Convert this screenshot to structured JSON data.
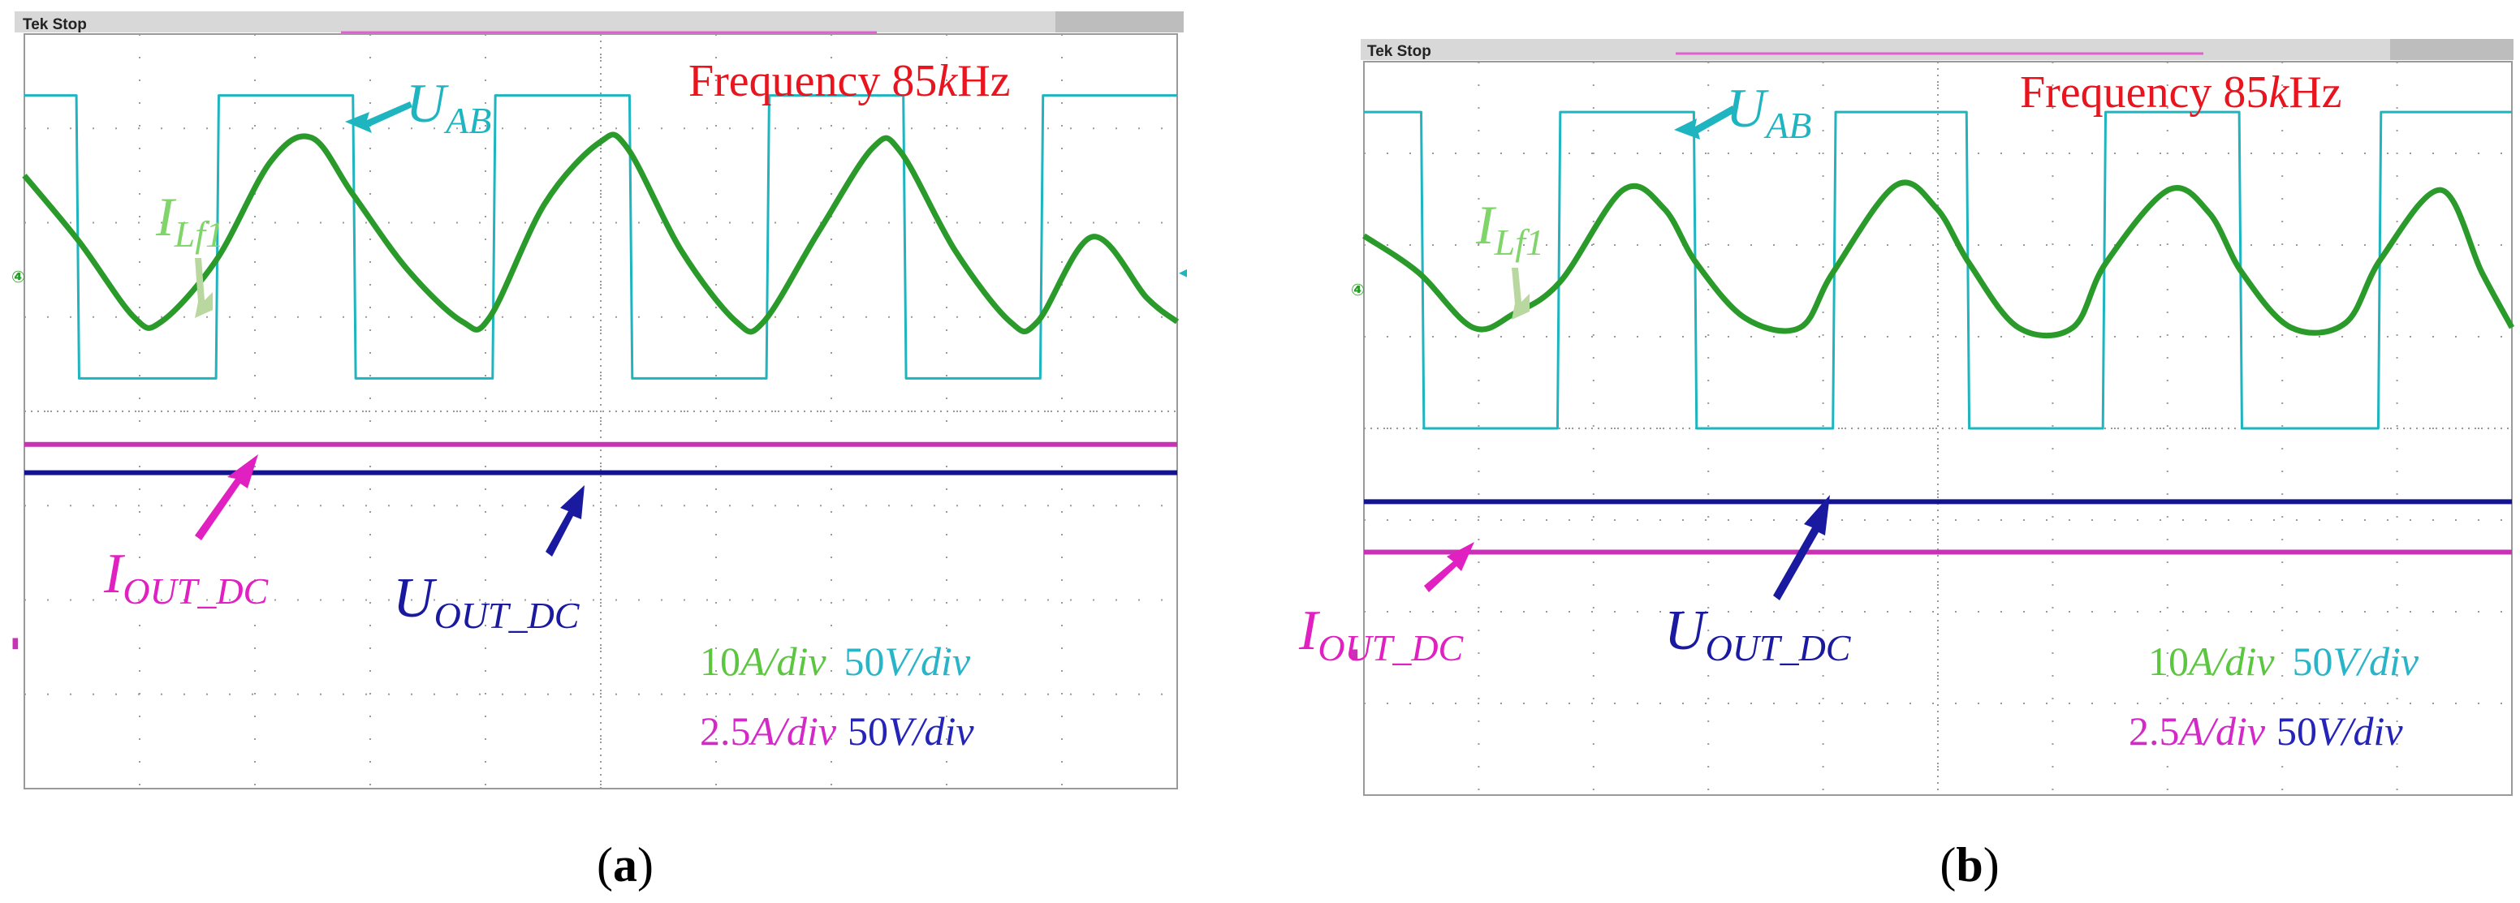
{
  "colors": {
    "uab": "#1fb5c0",
    "ilf1": "#2a9a2a",
    "iout": "#e020c0",
    "uout": "#1a1aa0",
    "iout_trace": "#c832b4",
    "uout_trace": "#14148c",
    "title": "#e8141e",
    "ilf1_label": "#7fd46a",
    "arrow_ilf1": "#b8d8a0",
    "scale_green": "#5cc640",
    "scale_cyan": "#29b4c8",
    "scale_magenta": "#d428c8",
    "scale_blue": "#2424b8"
  },
  "chart_data": [
    {
      "type": "line",
      "panel_label": "a",
      "header": "Tek Stop",
      "title_prefix": "Frequency 85",
      "title_k": "k",
      "title_unit": "Hz",
      "frequency_khz": 85,
      "grid": true,
      "x_divisions": 10,
      "y_divisions": 8,
      "labels": {
        "uab": {
          "base": "U",
          "sub": "AB"
        },
        "ilf1": {
          "base": "I",
          "sub": "Lf1"
        },
        "iout": {
          "base": "I",
          "sub": "OUT_DC"
        },
        "uout": {
          "base": "U",
          "sub": "OUT_DC"
        }
      },
      "scales": {
        "ch_current": {
          "num": "10",
          "unit": "A",
          "per": "/div"
        },
        "ch_voltage": {
          "num": "50",
          "unit": "V",
          "per": "/div"
        },
        "out_current": {
          "num": "2.5",
          "unit": "A",
          "per": "/div"
        },
        "out_voltage": {
          "num": "50",
          "unit": "V",
          "per": "/div"
        }
      },
      "series": [
        {
          "name": "U_AB",
          "color": "#1fb5c0",
          "x": [
            0,
            0.38,
            0.4,
            1.4,
            1.42,
            2.4,
            2.42,
            3.42,
            3.44,
            4.42,
            4.44,
            5.42,
            5.44,
            6.42,
            6.44,
            7.42,
            7.44,
            8.42
          ],
          "y": [
            3.35,
            3.35,
            0.35,
            0.35,
            3.35,
            3.35,
            0.35,
            0.35,
            3.35,
            3.35,
            0.35,
            0.35,
            3.35,
            3.35,
            0.35,
            0.35,
            3.35,
            3.35
          ]
        },
        {
          "name": "I_Lf1",
          "color": "#2a9a2a",
          "x": [
            0,
            0.4,
            0.8,
            1.0,
            1.4,
            1.8,
            2.1,
            2.4,
            2.8,
            3.2,
            3.4,
            3.8,
            4.2,
            4.4,
            4.8,
            5.2,
            5.4,
            5.8,
            6.2,
            6.4,
            6.8,
            7.2,
            7.4,
            7.8,
            8.2,
            8.42
          ],
          "y": [
            2.5,
            1.8,
            1.0,
            0.95,
            1.6,
            2.65,
            2.9,
            2.3,
            1.5,
            0.95,
            1.0,
            2.2,
            2.85,
            2.8,
            1.7,
            0.95,
            0.95,
            1.9,
            2.8,
            2.75,
            1.7,
            0.95,
            0.95,
            1.85,
            1.2,
            0.95
          ]
        },
        {
          "name": "I_OUT_DC",
          "color": "#c832b4",
          "x": [
            0,
            8.42
          ],
          "y": [
            -0.35,
            -0.35
          ]
        },
        {
          "name": "U_OUT_DC",
          "color": "#14148c",
          "x": [
            0,
            8.42
          ],
          "y": [
            -0.65,
            -0.65
          ]
        }
      ]
    },
    {
      "type": "line",
      "panel_label": "b",
      "header": "Tek Stop",
      "title_prefix": "Frequency 85",
      "title_k": "k",
      "title_unit": "Hz",
      "frequency_khz": 85,
      "grid": true,
      "x_divisions": 10,
      "y_divisions": 8,
      "labels": {
        "uab": {
          "base": "U",
          "sub": "AB"
        },
        "ilf1": {
          "base": "I",
          "sub": "Lf1"
        },
        "iout": {
          "base": "I",
          "sub": "OUT_DC"
        },
        "uout": {
          "base": "U",
          "sub": "OUT_DC"
        }
      },
      "scales": {
        "ch_current": {
          "num": "10",
          "unit": "A",
          "per": "/div"
        },
        "ch_voltage": {
          "num": "50",
          "unit": "V",
          "per": "/div"
        },
        "out_current": {
          "num": "2.5",
          "unit": "A",
          "per": "/div"
        },
        "out_voltage": {
          "num": "50",
          "unit": "V",
          "per": "/div"
        }
      },
      "series": [
        {
          "name": "U_AB",
          "color": "#1fb5c0",
          "x": [
            0,
            0.42,
            0.44,
            1.42,
            1.44,
            2.42,
            2.44,
            3.44,
            3.46,
            4.42,
            4.44,
            5.42,
            5.44,
            6.42,
            6.44,
            7.44,
            7.46,
            8.42
          ],
          "y": [
            3.45,
            3.45,
            0.0,
            0.0,
            3.45,
            3.45,
            0.0,
            0.0,
            3.45,
            3.45,
            0.0,
            0.0,
            3.45,
            3.45,
            0.0,
            0.0,
            3.45,
            3.45
          ]
        },
        {
          "name": "I_Lf1",
          "color": "#2a9a2a",
          "x": [
            0,
            0.4,
            0.8,
            1.1,
            1.44,
            1.9,
            2.2,
            2.44,
            2.8,
            3.2,
            3.44,
            3.9,
            4.2,
            4.44,
            4.8,
            5.2,
            5.44,
            5.9,
            6.2,
            6.44,
            6.8,
            7.2,
            7.46,
            7.9,
            8.2,
            8.42
          ],
          "y": [
            2.1,
            1.7,
            1.1,
            1.25,
            1.6,
            2.6,
            2.4,
            1.8,
            1.2,
            1.1,
            1.7,
            2.65,
            2.4,
            1.8,
            1.1,
            1.1,
            1.8,
            2.6,
            2.35,
            1.7,
            1.1,
            1.15,
            1.85,
            2.6,
            1.7,
            1.1
          ]
        },
        {
          "name": "U_OUT_DC",
          "color": "#14148c",
          "x": [
            0,
            8.42
          ],
          "y": [
            -0.8,
            -0.8
          ]
        },
        {
          "name": "I_OUT_DC",
          "color": "#c832b4",
          "x": [
            0,
            8.42
          ],
          "y": [
            -1.35,
            -1.35
          ]
        }
      ]
    }
  ]
}
